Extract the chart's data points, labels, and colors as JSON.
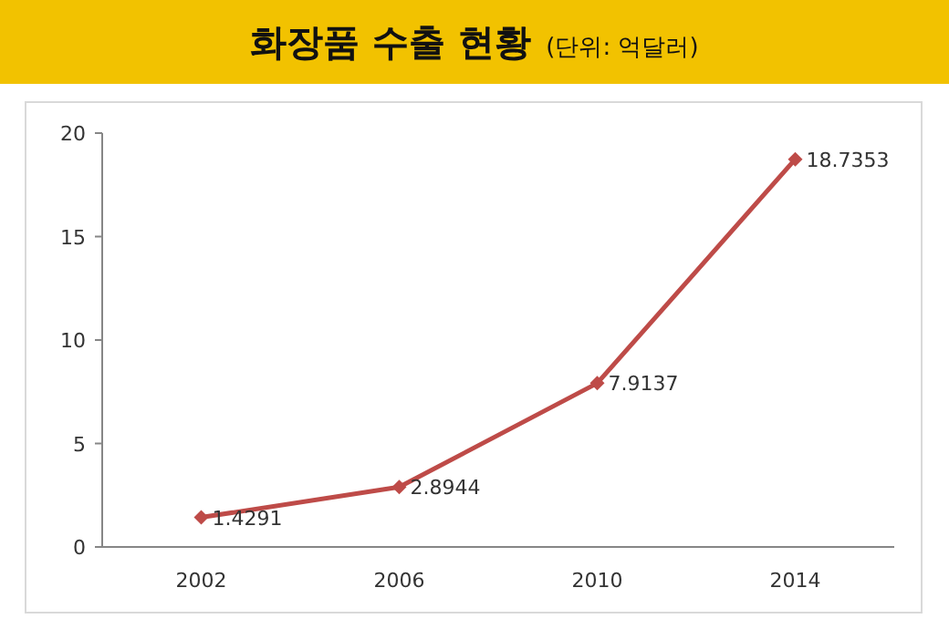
{
  "chart_data": {
    "type": "line",
    "title": "화장품 수출 현황",
    "subtitle": "(단위: 억달러)",
    "categories": [
      "2002",
      "2006",
      "2010",
      "2014"
    ],
    "series": [
      {
        "color": "#be4b48",
        "values": [
          1.4291,
          2.8944,
          7.9137,
          18.7353
        ]
      }
    ],
    "ylim": [
      0,
      20
    ],
    "yticks": [
      0,
      5,
      10,
      15,
      20
    ],
    "marker": "diamond",
    "data_labels": true,
    "grid": false
  }
}
